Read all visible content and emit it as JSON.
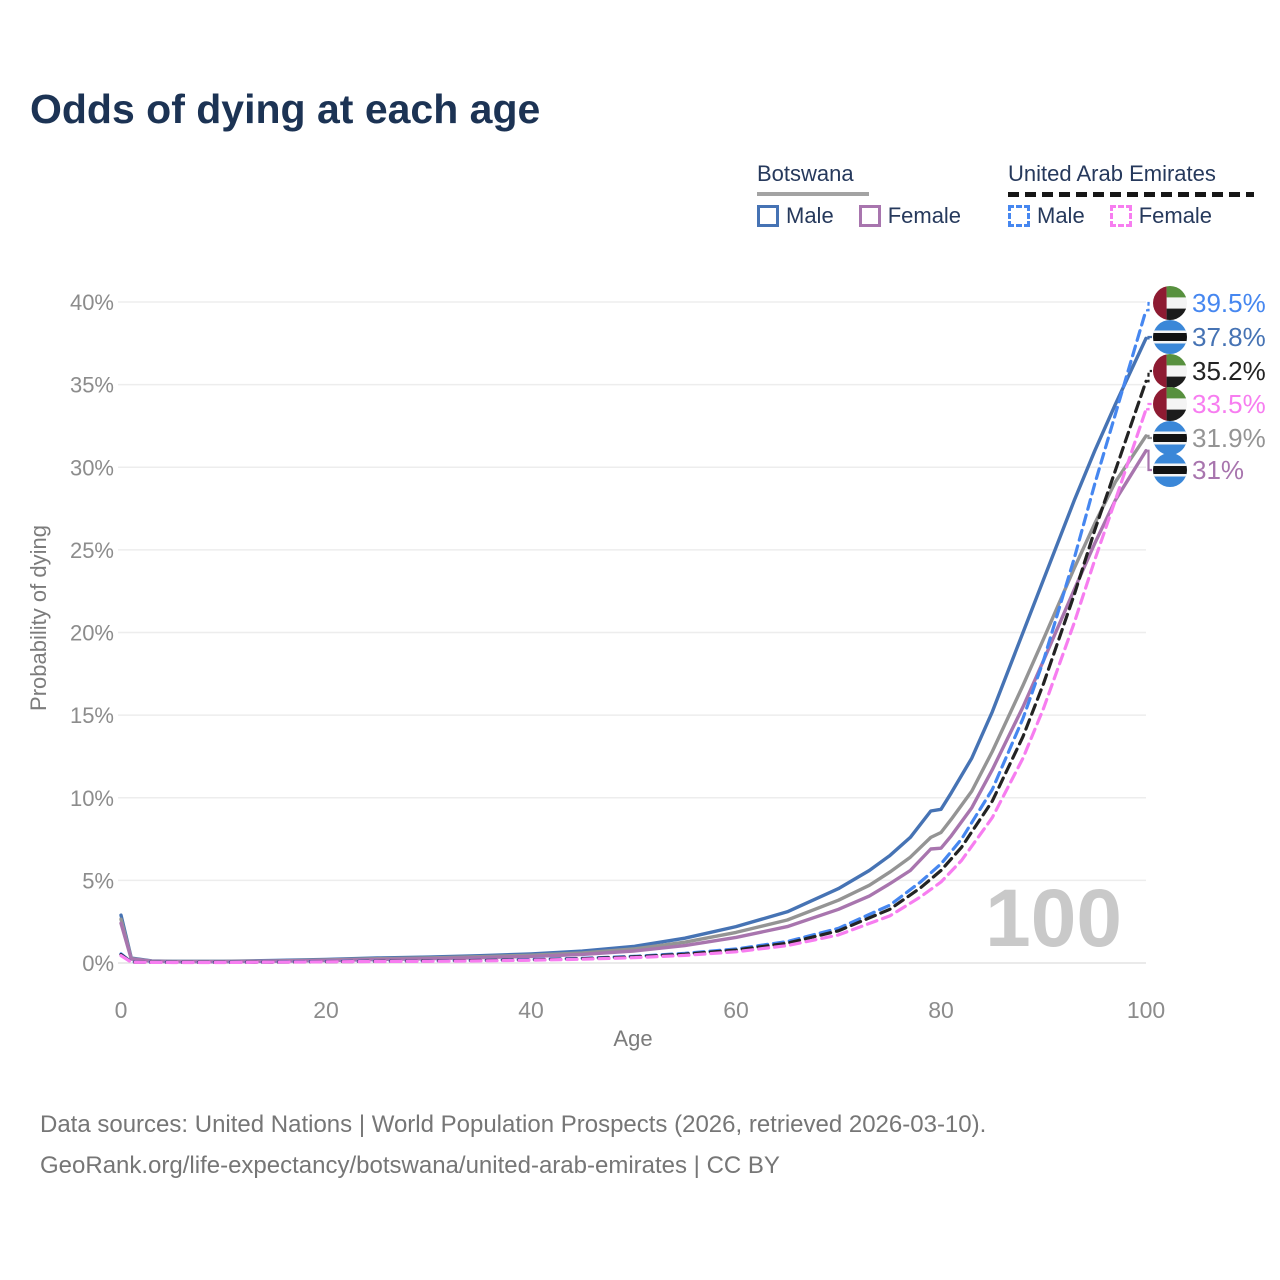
{
  "title": "Odds of dying at each age",
  "legend": {
    "groups": [
      {
        "country": "Botswana",
        "line_style": "solid",
        "underline_color": "#a3a3a3",
        "items": [
          {
            "label": "Male",
            "color": "#4673b4"
          },
          {
            "label": "Female",
            "color": "#a875ae"
          }
        ]
      },
      {
        "country": "United Arab Emirates",
        "line_style": "dashed",
        "underline_color": "#161616",
        "items": [
          {
            "label": "Male",
            "color": "#4687f0"
          },
          {
            "label": "Female",
            "color": "#f77df0"
          }
        ]
      }
    ]
  },
  "chart_data": {
    "type": "line",
    "xlabel": "Age",
    "ylabel": "Probability of dying",
    "xlim": [
      0,
      100
    ],
    "ylim": [
      0,
      40
    ],
    "grid": "horizontal",
    "age_cursor": "100",
    "x_ticks": [
      {
        "value": 0,
        "label": "0"
      },
      {
        "value": 20,
        "label": "20"
      },
      {
        "value": 40,
        "label": "40"
      },
      {
        "value": 60,
        "label": "60"
      },
      {
        "value": 80,
        "label": "80"
      },
      {
        "value": 100,
        "label": "100"
      }
    ],
    "y_ticks": [
      {
        "value": 0,
        "label": "0%"
      },
      {
        "value": 5,
        "label": "5%"
      },
      {
        "value": 10,
        "label": "10%"
      },
      {
        "value": 15,
        "label": "15%"
      },
      {
        "value": 20,
        "label": "20%"
      },
      {
        "value": 25,
        "label": "25%"
      },
      {
        "value": 30,
        "label": "30%"
      },
      {
        "value": 35,
        "label": "35%"
      },
      {
        "value": 40,
        "label": "40%"
      }
    ],
    "series": [
      {
        "id": "uae-male",
        "country": "United Arab Emirates",
        "group": "male",
        "flag": "uae",
        "dashed": true,
        "color": "#4687f0",
        "end_label": "39.5%",
        "points": [
          [
            0,
            0.55
          ],
          [
            1,
            0.06
          ],
          [
            5,
            0.04
          ],
          [
            10,
            0.04
          ],
          [
            15,
            0.06
          ],
          [
            20,
            0.09
          ],
          [
            25,
            0.11
          ],
          [
            30,
            0.13
          ],
          [
            35,
            0.16
          ],
          [
            40,
            0.21
          ],
          [
            45,
            0.28
          ],
          [
            50,
            0.4
          ],
          [
            55,
            0.58
          ],
          [
            60,
            0.85
          ],
          [
            65,
            1.3
          ],
          [
            70,
            2.1
          ],
          [
            75,
            3.5
          ],
          [
            78,
            4.9
          ],
          [
            80,
            6.0
          ],
          [
            82,
            7.5
          ],
          [
            85,
            10.5
          ],
          [
            88,
            14.8
          ],
          [
            90,
            18.3
          ],
          [
            93,
            24.5
          ],
          [
            95,
            29.0
          ],
          [
            97,
            33.2
          ],
          [
            100,
            39.5
          ]
        ]
      },
      {
        "id": "botswana-male",
        "country": "Botswana",
        "group": "male",
        "flag": "botswana",
        "dashed": false,
        "color": "#4673b4",
        "end_label": "37.8%",
        "points": [
          [
            0,
            2.9
          ],
          [
            1,
            0.3
          ],
          [
            3,
            0.13
          ],
          [
            5,
            0.1
          ],
          [
            10,
            0.1
          ],
          [
            15,
            0.15
          ],
          [
            20,
            0.21
          ],
          [
            25,
            0.3
          ],
          [
            30,
            0.36
          ],
          [
            35,
            0.44
          ],
          [
            40,
            0.55
          ],
          [
            45,
            0.72
          ],
          [
            50,
            1.0
          ],
          [
            55,
            1.5
          ],
          [
            60,
            2.2
          ],
          [
            65,
            3.1
          ],
          [
            70,
            4.5
          ],
          [
            73,
            5.6
          ],
          [
            75,
            6.5
          ],
          [
            77,
            7.6
          ],
          [
            79,
            9.2
          ],
          [
            80,
            9.3
          ],
          [
            81,
            10.3
          ],
          [
            83,
            12.4
          ],
          [
            85,
            15.2
          ],
          [
            88,
            20.0
          ],
          [
            90,
            23.2
          ],
          [
            93,
            28.0
          ],
          [
            95,
            31.0
          ],
          [
            97,
            33.8
          ],
          [
            100,
            37.8
          ]
        ]
      },
      {
        "id": "uae-all",
        "country": "United Arab Emirates",
        "group": "all",
        "flag": "uae",
        "dashed": true,
        "color": "#232323",
        "end_label": "35.2%",
        "points": [
          [
            0,
            0.5
          ],
          [
            1,
            0.055
          ],
          [
            5,
            0.035
          ],
          [
            10,
            0.035
          ],
          [
            15,
            0.055
          ],
          [
            20,
            0.08
          ],
          [
            25,
            0.1
          ],
          [
            30,
            0.12
          ],
          [
            35,
            0.15
          ],
          [
            40,
            0.19
          ],
          [
            45,
            0.26
          ],
          [
            50,
            0.37
          ],
          [
            55,
            0.53
          ],
          [
            60,
            0.78
          ],
          [
            65,
            1.2
          ],
          [
            70,
            1.95
          ],
          [
            75,
            3.25
          ],
          [
            78,
            4.55
          ],
          [
            80,
            5.6
          ],
          [
            82,
            7.0
          ],
          [
            85,
            9.8
          ],
          [
            88,
            13.7
          ],
          [
            90,
            16.9
          ],
          [
            93,
            22.3
          ],
          [
            95,
            26.2
          ],
          [
            97,
            29.8
          ],
          [
            100,
            35.2
          ]
        ]
      },
      {
        "id": "uae-female",
        "country": "United Arab Emirates",
        "group": "female",
        "flag": "uae",
        "dashed": true,
        "color": "#f77df0",
        "end_label": "33.5%",
        "points": [
          [
            0,
            0.45
          ],
          [
            1,
            0.05
          ],
          [
            5,
            0.03
          ],
          [
            10,
            0.03
          ],
          [
            15,
            0.05
          ],
          [
            20,
            0.07
          ],
          [
            25,
            0.09
          ],
          [
            30,
            0.1
          ],
          [
            35,
            0.13
          ],
          [
            40,
            0.17
          ],
          [
            45,
            0.23
          ],
          [
            50,
            0.32
          ],
          [
            55,
            0.46
          ],
          [
            60,
            0.68
          ],
          [
            65,
            1.05
          ],
          [
            70,
            1.7
          ],
          [
            75,
            2.85
          ],
          [
            78,
            4.0
          ],
          [
            80,
            4.9
          ],
          [
            82,
            6.2
          ],
          [
            85,
            8.8
          ],
          [
            88,
            12.4
          ],
          [
            90,
            15.4
          ],
          [
            93,
            20.6
          ],
          [
            95,
            24.4
          ],
          [
            97,
            28.0
          ],
          [
            100,
            33.5
          ]
        ]
      },
      {
        "id": "botswana-all",
        "country": "Botswana",
        "group": "all",
        "flag": "botswana",
        "dashed": false,
        "color": "#949494",
        "end_label": "31.9%",
        "points": [
          [
            0,
            2.65
          ],
          [
            1,
            0.27
          ],
          [
            3,
            0.11
          ],
          [
            5,
            0.09
          ],
          [
            10,
            0.09
          ],
          [
            15,
            0.13
          ],
          [
            20,
            0.18
          ],
          [
            25,
            0.26
          ],
          [
            30,
            0.31
          ],
          [
            35,
            0.38
          ],
          [
            40,
            0.47
          ],
          [
            45,
            0.61
          ],
          [
            50,
            0.85
          ],
          [
            55,
            1.26
          ],
          [
            60,
            1.85
          ],
          [
            65,
            2.6
          ],
          [
            70,
            3.8
          ],
          [
            73,
            4.7
          ],
          [
            75,
            5.5
          ],
          [
            77,
            6.4
          ],
          [
            79,
            7.6
          ],
          [
            80,
            7.9
          ],
          [
            81,
            8.7
          ],
          [
            83,
            10.4
          ],
          [
            85,
            12.8
          ],
          [
            88,
            16.8
          ],
          [
            90,
            19.6
          ],
          [
            93,
            23.9
          ],
          [
            95,
            26.6
          ],
          [
            97,
            29.1
          ],
          [
            100,
            31.9
          ]
        ]
      },
      {
        "id": "botswana-female",
        "country": "Botswana",
        "group": "female",
        "flag": "botswana",
        "dashed": false,
        "color": "#a875ae",
        "end_label": "31%",
        "points": [
          [
            0,
            2.4
          ],
          [
            1,
            0.24
          ],
          [
            3,
            0.1
          ],
          [
            5,
            0.08
          ],
          [
            10,
            0.08
          ],
          [
            15,
            0.11
          ],
          [
            20,
            0.15
          ],
          [
            25,
            0.21
          ],
          [
            30,
            0.26
          ],
          [
            35,
            0.32
          ],
          [
            40,
            0.4
          ],
          [
            45,
            0.52
          ],
          [
            50,
            0.72
          ],
          [
            55,
            1.05
          ],
          [
            60,
            1.55
          ],
          [
            65,
            2.2
          ],
          [
            70,
            3.25
          ],
          [
            73,
            4.05
          ],
          [
            75,
            4.8
          ],
          [
            77,
            5.6
          ],
          [
            79,
            6.9
          ],
          [
            80,
            6.95
          ],
          [
            81,
            7.7
          ],
          [
            83,
            9.4
          ],
          [
            85,
            11.7
          ],
          [
            88,
            15.5
          ],
          [
            90,
            18.3
          ],
          [
            93,
            22.6
          ],
          [
            95,
            25.4
          ],
          [
            97,
            28.0
          ],
          [
            100,
            31.0
          ]
        ]
      }
    ],
    "flag_colors": {
      "uae": {
        "red": "#8e1b32",
        "green": "#57903e",
        "white": "#f4f4f4",
        "black": "#1c1c1c"
      },
      "botswana": {
        "blue": "#3a87d8",
        "white": "#f4f4f4",
        "black": "#121212"
      }
    }
  },
  "footer": {
    "line1": "Data sources: United Nations | World Population Prospects (2026, retrieved 2026-03-10).",
    "line2": "GeoRank.org/life-expectancy/botswana/united-arab-emirates | CC BY"
  }
}
